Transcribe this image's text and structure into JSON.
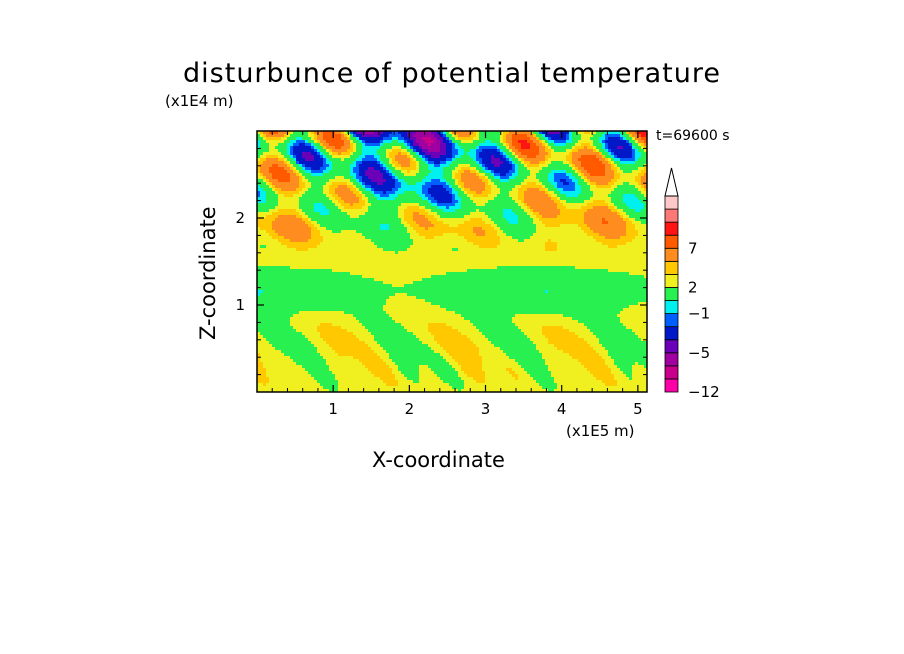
{
  "chart_data": {
    "type": "heatmap",
    "title": "disturbunce of potential temperature",
    "time_label": "t=69600 s",
    "xlabel": "X-coordinate",
    "ylabel": "Z-coordinate",
    "x_unit": "(x1E5 m)",
    "y_unit": "(x1E4 m)",
    "xlim": [
      0,
      5.12
    ],
    "ylim": [
      0,
      3.0
    ],
    "x_ticks": [
      {
        "value": 1,
        "label": "1"
      },
      {
        "value": 2,
        "label": "2"
      },
      {
        "value": 3,
        "label": "3"
      },
      {
        "value": 4,
        "label": "4"
      },
      {
        "value": 5,
        "label": "5"
      }
    ],
    "y_ticks": [
      {
        "value": 1,
        "label": "1"
      },
      {
        "value": 2,
        "label": "2"
      }
    ],
    "colorbar": {
      "extend": "max",
      "levels": [
        -12,
        -9,
        -7,
        -5,
        -3,
        -2,
        -1,
        1,
        2,
        3,
        5,
        7,
        9,
        12
      ],
      "tick_labels": [
        {
          "value": 7,
          "label": "7"
        },
        {
          "value": 2,
          "label": "2"
        },
        {
          "value": -1,
          "label": "−1"
        },
        {
          "value": -5,
          "label": "−5"
        },
        {
          "value": -12,
          "label": "−12"
        }
      ],
      "colors": [
        "#ff00a8",
        "#c8008c",
        "#a000a0",
        "#6a00b8",
        "#0018c8",
        "#0060ff",
        "#00f0f0",
        "#28f050",
        "#f0f020",
        "#ffc800",
        "#ff8c1e",
        "#ff5a00",
        "#ff1414",
        "#ff7878",
        "#ffc8c8"
      ]
    }
  }
}
